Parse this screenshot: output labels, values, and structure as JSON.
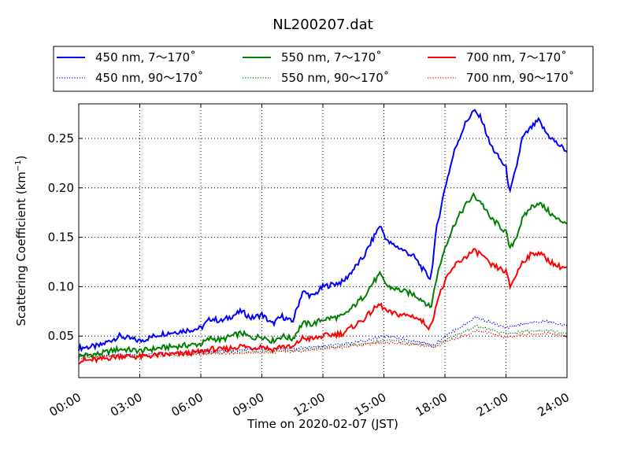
{
  "chart_data": {
    "type": "line",
    "title": "NL200207.dat",
    "xlabel": "Time on 2020-02-07 (JST)",
    "ylabel_main": "Scattering Coefficient (km",
    "ylabel_sup": "−1",
    "ylabel_close": ")",
    "xlim": [
      "00:00",
      "24:00"
    ],
    "ylim": [
      0.008,
      0.285
    ],
    "grid": true,
    "legend_position": "top",
    "x_ticks": [
      "00:00",
      "03:00",
      "06:00",
      "09:00",
      "12:00",
      "15:00",
      "18:00",
      "21:00",
      "24:00"
    ],
    "y_ticks": [
      "0.05",
      "0.10",
      "0.15",
      "0.20",
      "0.25"
    ],
    "y_tick_values": [
      0.05,
      0.1,
      0.15,
      0.2,
      0.25
    ],
    "series": [
      {
        "name": "450 nm, 7～170˚",
        "color": "#0000ff",
        "style": "solid",
        "x": [
          0,
          1,
          2,
          3,
          4,
          5,
          6,
          6.5,
          7,
          7.5,
          8,
          8.5,
          9,
          9.5,
          10,
          10.5,
          11,
          11.5,
          12,
          13,
          14,
          14.5,
          14.8,
          15.2,
          15.7,
          16.5,
          17,
          17.3,
          17.6,
          18,
          18.5,
          19,
          19.4,
          19.8,
          20.2,
          20.5,
          21,
          21.2,
          21.5,
          21.8,
          22.2,
          22.6,
          23,
          23.5,
          24
        ],
        "y": [
          0.038,
          0.04,
          0.05,
          0.045,
          0.052,
          0.055,
          0.058,
          0.068,
          0.065,
          0.07,
          0.075,
          0.068,
          0.072,
          0.062,
          0.07,
          0.064,
          0.095,
          0.09,
          0.1,
          0.105,
          0.13,
          0.15,
          0.162,
          0.145,
          0.14,
          0.13,
          0.115,
          0.108,
          0.16,
          0.2,
          0.24,
          0.265,
          0.278,
          0.27,
          0.245,
          0.235,
          0.22,
          0.195,
          0.22,
          0.25,
          0.26,
          0.268,
          0.255,
          0.245,
          0.237
        ]
      },
      {
        "name": "550 nm, 7～170˚",
        "color": "#008000",
        "style": "solid",
        "x": [
          0,
          1,
          2,
          3,
          4,
          5,
          6,
          6.5,
          7,
          7.5,
          8,
          8.5,
          9,
          9.5,
          10,
          10.5,
          11,
          11.5,
          12,
          13,
          14,
          14.5,
          14.8,
          15.2,
          15.7,
          16.5,
          17,
          17.3,
          17.6,
          18,
          18.5,
          19,
          19.4,
          19.8,
          20.2,
          20.5,
          21,
          21.2,
          21.5,
          21.8,
          22.2,
          22.6,
          23,
          23.5,
          24
        ],
        "y": [
          0.03,
          0.032,
          0.037,
          0.035,
          0.038,
          0.04,
          0.042,
          0.048,
          0.046,
          0.05,
          0.053,
          0.048,
          0.05,
          0.045,
          0.05,
          0.047,
          0.063,
          0.062,
          0.067,
          0.07,
          0.09,
          0.105,
          0.112,
          0.1,
          0.097,
          0.092,
          0.085,
          0.078,
          0.11,
          0.14,
          0.165,
          0.182,
          0.192,
          0.185,
          0.17,
          0.165,
          0.155,
          0.138,
          0.15,
          0.168,
          0.18,
          0.185,
          0.178,
          0.168,
          0.165
        ]
      },
      {
        "name": "700 nm, 7～170˚",
        "color": "#ff0000",
        "style": "solid",
        "x": [
          0,
          1,
          2,
          3,
          4,
          5,
          6,
          6.5,
          7,
          7.5,
          8,
          8.5,
          9,
          9.5,
          10,
          10.5,
          11,
          11.5,
          12,
          13,
          14,
          14.5,
          14.8,
          15.2,
          15.7,
          16.5,
          17,
          17.3,
          17.6,
          18,
          18.5,
          19,
          19.4,
          19.8,
          20.2,
          20.5,
          21,
          21.2,
          21.5,
          21.8,
          22.2,
          22.6,
          23,
          23.5,
          24
        ],
        "y": [
          0.025,
          0.026,
          0.03,
          0.029,
          0.031,
          0.032,
          0.034,
          0.037,
          0.036,
          0.038,
          0.04,
          0.038,
          0.04,
          0.036,
          0.04,
          0.038,
          0.048,
          0.047,
          0.05,
          0.053,
          0.067,
          0.077,
          0.082,
          0.074,
          0.072,
          0.07,
          0.063,
          0.058,
          0.085,
          0.105,
          0.122,
          0.13,
          0.136,
          0.133,
          0.122,
          0.12,
          0.115,
          0.1,
          0.112,
          0.125,
          0.132,
          0.135,
          0.128,
          0.121,
          0.119
        ]
      },
      {
        "name": "450 nm, 90～170˚",
        "color": "#0000ff",
        "style": "dotted",
        "x": [
          0,
          2,
          4,
          6,
          8,
          10,
          11,
          12,
          13,
          14,
          15,
          16,
          17,
          17.5,
          18,
          19,
          19.5,
          20,
          20.5,
          21,
          22,
          23,
          24
        ],
        "y": [
          0.03,
          0.031,
          0.032,
          0.034,
          0.036,
          0.037,
          0.038,
          0.04,
          0.042,
          0.045,
          0.05,
          0.047,
          0.043,
          0.041,
          0.05,
          0.062,
          0.069,
          0.066,
          0.062,
          0.058,
          0.063,
          0.065,
          0.06
        ]
      },
      {
        "name": "550 nm, 90～170˚",
        "color": "#008000",
        "style": "dotted",
        "x": [
          0,
          2,
          4,
          6,
          8,
          10,
          11,
          12,
          13,
          14,
          15,
          16,
          17,
          17.5,
          18,
          19,
          19.5,
          20,
          20.5,
          21,
          22,
          23,
          24
        ],
        "y": [
          0.029,
          0.03,
          0.031,
          0.033,
          0.034,
          0.035,
          0.036,
          0.038,
          0.04,
          0.042,
          0.046,
          0.044,
          0.041,
          0.039,
          0.046,
          0.055,
          0.06,
          0.058,
          0.055,
          0.052,
          0.055,
          0.056,
          0.053
        ]
      },
      {
        "name": "700 nm, 90～170˚",
        "color": "#ff0000",
        "style": "dotted",
        "x": [
          0,
          2,
          4,
          6,
          8,
          10,
          11,
          12,
          13,
          14,
          15,
          16,
          17,
          17.5,
          18,
          19,
          19.5,
          20,
          20.5,
          21,
          22,
          23,
          24
        ],
        "y": [
          0.028,
          0.029,
          0.03,
          0.032,
          0.033,
          0.034,
          0.035,
          0.037,
          0.039,
          0.041,
          0.044,
          0.042,
          0.04,
          0.038,
          0.044,
          0.051,
          0.055,
          0.054,
          0.051,
          0.049,
          0.052,
          0.053,
          0.05
        ]
      }
    ]
  }
}
